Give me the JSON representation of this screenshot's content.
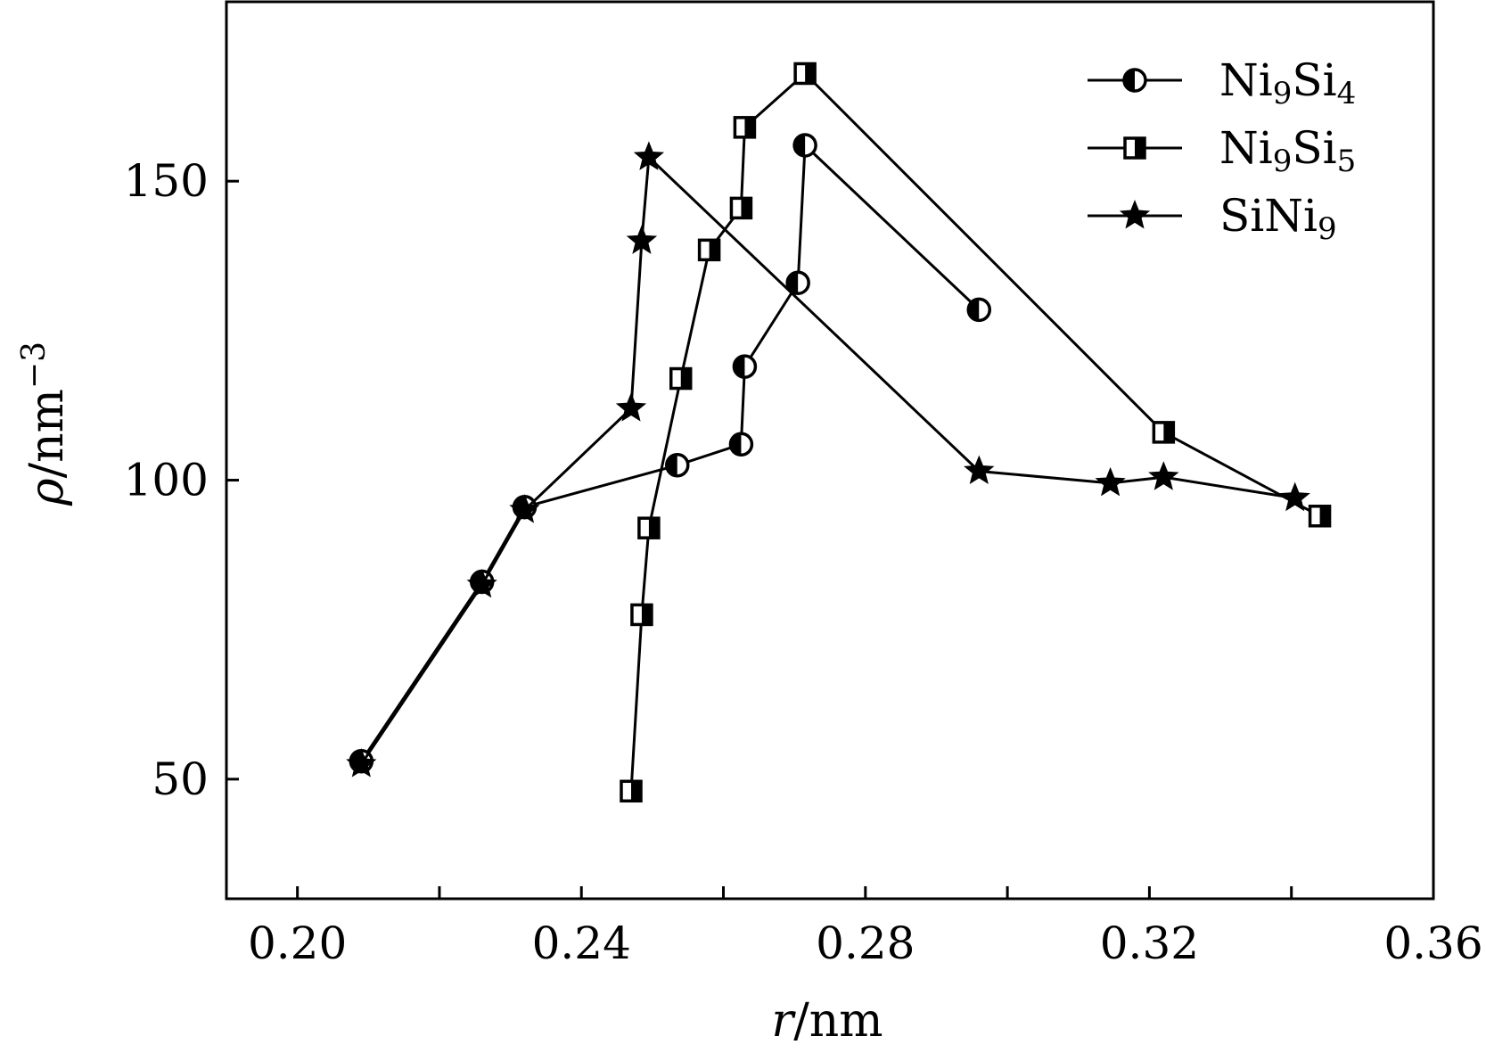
{
  "chart_data": {
    "type": "line",
    "title": "",
    "xlabel_var": "r",
    "xlabel_unit": "/nm",
    "ylabel_var": "ρ",
    "ylabel_unit": "/nm",
    "ylabel_exp": "−3",
    "xlim": [
      0.19,
      0.36
    ],
    "ylim": [
      30,
      180
    ],
    "x_ticks": [
      0.2,
      0.22,
      0.24,
      0.26,
      0.28,
      0.3,
      0.32,
      0.34,
      0.36
    ],
    "x_tick_labels": [
      "0.20",
      "",
      "0.24",
      "",
      "0.28",
      "",
      "0.32",
      "",
      "0.36"
    ],
    "y_ticks": [
      50,
      100,
      150
    ],
    "y_tick_labels": [
      "50",
      "100",
      "150"
    ],
    "grid": false,
    "legend_position": "top-right",
    "series": [
      {
        "name": "Ni9Si4",
        "name_parts": {
          "a": "Ni",
          "a_sub": "9",
          "b": "Si",
          "b_sub": "4"
        },
        "marker": "circle",
        "x": [
          0.209,
          0.226,
          0.232,
          0.2535,
          0.2625,
          0.263,
          0.2705,
          0.2715,
          0.296
        ],
        "y": [
          53,
          83,
          95.5,
          102.5,
          106,
          119,
          133,
          156,
          128.5
        ]
      },
      {
        "name": "Ni9Si5",
        "name_parts": {
          "a": "Ni",
          "a_sub": "9",
          "b": "Si",
          "b_sub": "5"
        },
        "marker": "square",
        "x": [
          0.247,
          0.2485,
          0.2495,
          0.254,
          0.258,
          0.2625,
          0.263,
          0.2715,
          0.322,
          0.344
        ],
        "y": [
          48,
          77.5,
          92,
          117,
          138.5,
          145.5,
          159,
          168,
          108,
          94
        ]
      },
      {
        "name": "SiNi9",
        "name_parts": {
          "a": "SiNi",
          "a_sub": "9",
          "b": "",
          "b_sub": ""
        },
        "marker": "star",
        "x": [
          0.209,
          0.226,
          0.232,
          0.247,
          0.2485,
          0.2495,
          0.296,
          0.3145,
          0.322,
          0.3405
        ],
        "y": [
          52.5,
          82.5,
          95,
          112,
          140,
          154,
          101.5,
          99.5,
          100.5,
          97
        ]
      }
    ]
  }
}
